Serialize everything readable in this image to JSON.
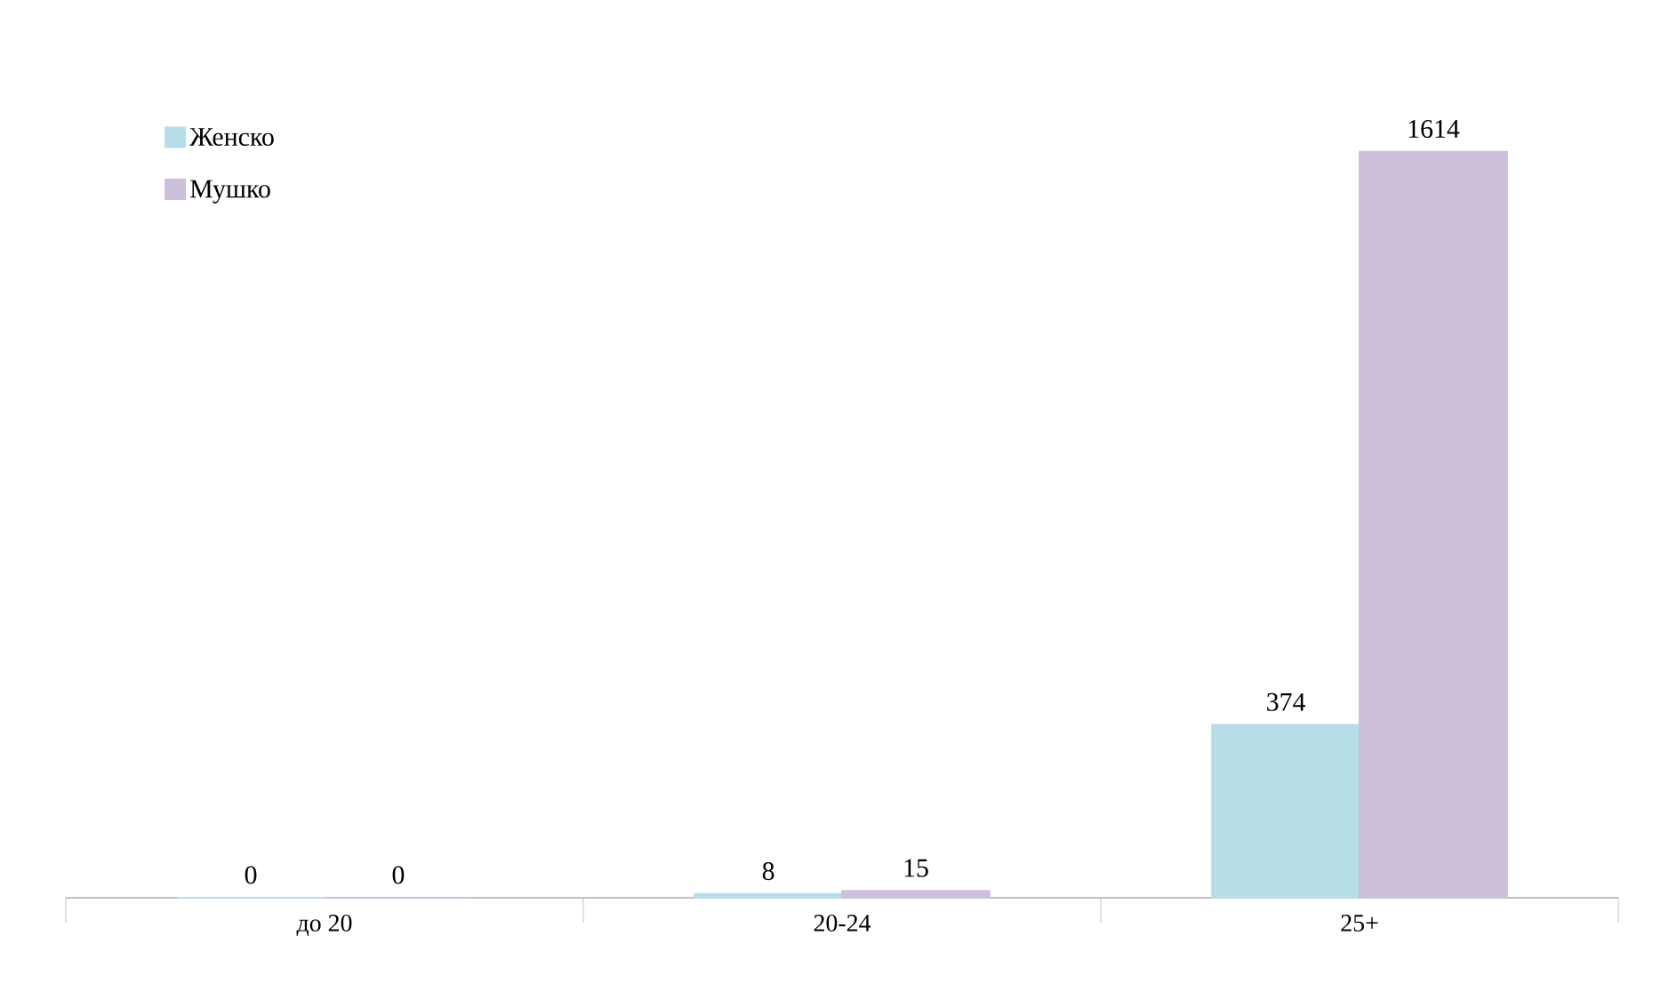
{
  "chart_data": {
    "type": "bar",
    "categories": [
      "до 20",
      "20-24",
      "25+"
    ],
    "series": [
      {
        "name": "Женско",
        "color": "#b7dde8",
        "values": [
          0,
          8,
          374
        ]
      },
      {
        "name": "Мушко",
        "color": "#ccc0da",
        "values": [
          0,
          15,
          1614
        ]
      }
    ],
    "data_labels": true,
    "legend": "top left"
  }
}
